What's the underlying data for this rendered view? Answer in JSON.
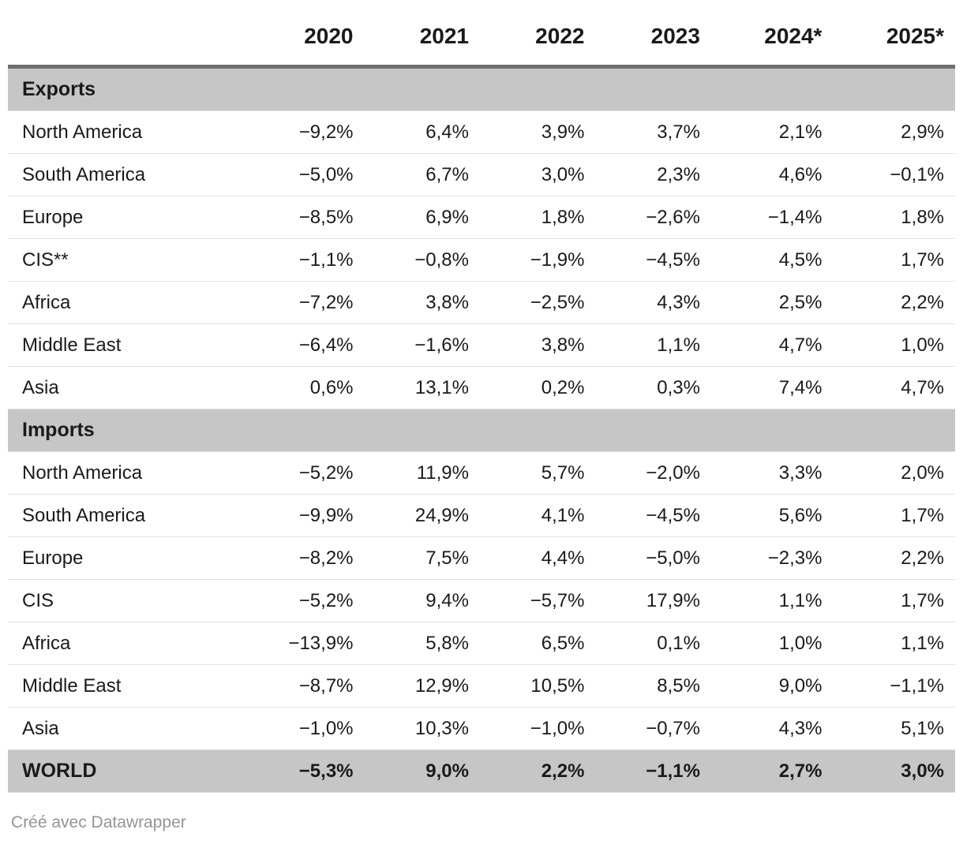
{
  "chart_data": {
    "type": "table",
    "columns": [
      "",
      "2020",
      "2021",
      "2022",
      "2023",
      "2024*",
      "2025*"
    ],
    "sections": [
      {
        "label": "Exports",
        "rows": [
          {
            "label": "North America",
            "values": [
              "−9,2%",
              "6,4%",
              "3,9%",
              "3,7%",
              "2,1%",
              "2,9%"
            ]
          },
          {
            "label": "South America",
            "values": [
              "−5,0%",
              "6,7%",
              "3,0%",
              "2,3%",
              "4,6%",
              "−0,1%"
            ]
          },
          {
            "label": "Europe",
            "values": [
              "−8,5%",
              "6,9%",
              "1,8%",
              "−2,6%",
              "−1,4%",
              "1,8%"
            ]
          },
          {
            "label": "CIS**",
            "values": [
              "−1,1%",
              "−0,8%",
              "−1,9%",
              "−4,5%",
              "4,5%",
              "1,7%"
            ]
          },
          {
            "label": "Africa",
            "values": [
              "−7,2%",
              "3,8%",
              "−2,5%",
              "4,3%",
              "2,5%",
              "2,2%"
            ]
          },
          {
            "label": "Middle East",
            "values": [
              "−6,4%",
              "−1,6%",
              "3,8%",
              "1,1%",
              "4,7%",
              "1,0%"
            ]
          },
          {
            "label": "Asia",
            "values": [
              "0,6%",
              "13,1%",
              "0,2%",
              "0,3%",
              "7,4%",
              "4,7%"
            ]
          }
        ]
      },
      {
        "label": "Imports",
        "rows": [
          {
            "label": "North America",
            "values": [
              "−5,2%",
              "11,9%",
              "5,7%",
              "−2,0%",
              "3,3%",
              "2,0%"
            ]
          },
          {
            "label": "South America",
            "values": [
              "−9,9%",
              "24,9%",
              "4,1%",
              "−4,5%",
              "5,6%",
              "1,7%"
            ]
          },
          {
            "label": "Europe",
            "values": [
              "−8,2%",
              "7,5%",
              "4,4%",
              "−5,0%",
              "−2,3%",
              "2,2%"
            ]
          },
          {
            "label": "CIS",
            "values": [
              "−5,2%",
              "9,4%",
              "−5,7%",
              "17,9%",
              "1,1%",
              "1,7%"
            ]
          },
          {
            "label": "Africa",
            "values": [
              "−13,9%",
              "5,8%",
              "6,5%",
              "0,1%",
              "1,0%",
              "1,1%"
            ]
          },
          {
            "label": "Middle East",
            "values": [
              "−8,7%",
              "12,9%",
              "10,5%",
              "8,5%",
              "9,0%",
              "−1,1%"
            ]
          },
          {
            "label": "Asia",
            "values": [
              "−1,0%",
              "10,3%",
              "−1,0%",
              "−0,7%",
              "4,3%",
              "5,1%"
            ]
          }
        ]
      }
    ],
    "total_row": {
      "label": "WORLD",
      "values": [
        "−5,3%",
        "9,0%",
        "2,2%",
        "−1,1%",
        "2,7%",
        "3,0%"
      ]
    },
    "value_format": "percent, decimal comma, U+2212 minus",
    "layout_hints": {
      "grid": "horizontal row dividers",
      "value_alignment": "right",
      "section_rows_full_width": true
    }
  },
  "footer": {
    "credit": "Créé avec Datawrapper"
  },
  "colors": {
    "section_header_bg": "#c6c6c6",
    "total_row_bg": "#c6c6c6",
    "header_border": "#6e6e6e",
    "row_divider": "#e0e0e0",
    "text": "#1a1a1a",
    "credit_text": "#949494",
    "background": "#ffffff"
  }
}
